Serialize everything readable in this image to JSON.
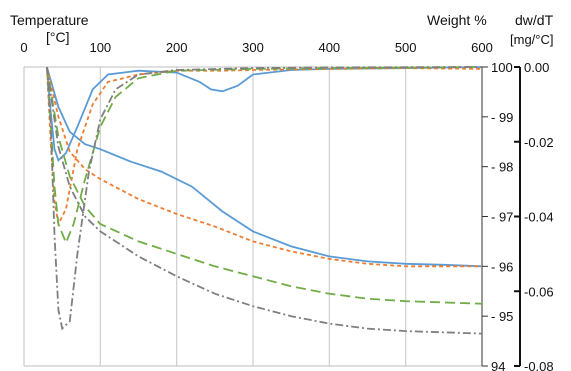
{
  "chart_data": {
    "type": "line",
    "x_axis": {
      "label": "Temperature",
      "unit": "[°C]",
      "ticks": [
        0,
        100,
        200,
        300,
        400,
        500,
        600
      ],
      "range": [
        0,
        600
      ],
      "position": "top",
      "grid": true
    },
    "y_axis_weight": {
      "label": "Weight %",
      "ticks": [
        94,
        95,
        96,
        97,
        98,
        99,
        100
      ],
      "range": [
        94,
        100
      ]
    },
    "y_axis_dwdt": {
      "label": "dw/dT",
      "unit": "[mg/°C]",
      "tick_labels": [
        "0.00",
        "-0.02",
        "-0.04",
        "-0.06",
        "-0.08"
      ],
      "ticks": [
        0,
        -0.02,
        -0.04,
        -0.06,
        -0.08
      ],
      "range": [
        -0.08,
        0
      ]
    },
    "series": [
      {
        "color": "#5b9bd5",
        "style": "solid",
        "weight": [
          [
            30,
            100
          ],
          [
            45,
            99.2
          ],
          [
            60,
            98.7
          ],
          [
            80,
            98.45
          ],
          [
            100,
            98.35
          ],
          [
            140,
            98.1
          ],
          [
            180,
            97.9
          ],
          [
            220,
            97.6
          ],
          [
            260,
            97.1
          ],
          [
            300,
            96.7
          ],
          [
            350,
            96.4
          ],
          [
            400,
            96.2
          ],
          [
            450,
            96.1
          ],
          [
            500,
            96.05
          ],
          [
            550,
            96.03
          ],
          [
            600,
            96.0
          ]
        ],
        "dwdt": [
          [
            30,
            0
          ],
          [
            35,
            -0.012
          ],
          [
            40,
            -0.022
          ],
          [
            45,
            -0.025
          ],
          [
            55,
            -0.023
          ],
          [
            70,
            -0.016
          ],
          [
            90,
            -0.006
          ],
          [
            110,
            -0.002
          ],
          [
            150,
            -0.001
          ],
          [
            200,
            -0.0015
          ],
          [
            230,
            -0.004
          ],
          [
            245,
            -0.006
          ],
          [
            260,
            -0.0065
          ],
          [
            280,
            -0.005
          ],
          [
            300,
            -0.002
          ],
          [
            350,
            -0.0008
          ],
          [
            400,
            -0.0005
          ],
          [
            500,
            -0.0003
          ],
          [
            600,
            0
          ]
        ]
      },
      {
        "color": "#ed7d31",
        "style": "dashed",
        "weight": [
          [
            30,
            100
          ],
          [
            45,
            99.0
          ],
          [
            60,
            98.3
          ],
          [
            80,
            97.95
          ],
          [
            100,
            97.75
          ],
          [
            150,
            97.35
          ],
          [
            200,
            97.05
          ],
          [
            250,
            96.8
          ],
          [
            300,
            96.5
          ],
          [
            350,
            96.3
          ],
          [
            400,
            96.15
          ],
          [
            450,
            96.05
          ],
          [
            500,
            96.0
          ],
          [
            600,
            96.0
          ]
        ],
        "dwdt": [
          [
            30,
            0
          ],
          [
            35,
            -0.02
          ],
          [
            40,
            -0.036
          ],
          [
            45,
            -0.042
          ],
          [
            55,
            -0.038
          ],
          [
            70,
            -0.022
          ],
          [
            90,
            -0.01
          ],
          [
            110,
            -0.004
          ],
          [
            150,
            -0.002
          ],
          [
            200,
            -0.001
          ],
          [
            260,
            -0.001
          ],
          [
            300,
            -0.0008
          ],
          [
            400,
            -0.0005
          ],
          [
            500,
            -0.0003
          ],
          [
            600,
            -0.0005
          ]
        ]
      },
      {
        "color": "#70ad47",
        "style": "long-dash",
        "weight": [
          [
            30,
            100
          ],
          [
            45,
            98.6
          ],
          [
            60,
            97.8
          ],
          [
            80,
            97.2
          ],
          [
            100,
            96.85
          ],
          [
            150,
            96.5
          ],
          [
            200,
            96.25
          ],
          [
            250,
            96.0
          ],
          [
            300,
            95.8
          ],
          [
            350,
            95.6
          ],
          [
            400,
            95.45
          ],
          [
            450,
            95.35
          ],
          [
            500,
            95.3
          ],
          [
            600,
            95.25
          ]
        ],
        "dwdt": [
          [
            30,
            0
          ],
          [
            35,
            -0.015
          ],
          [
            40,
            -0.032
          ],
          [
            45,
            -0.042
          ],
          [
            55,
            -0.047
          ],
          [
            65,
            -0.042
          ],
          [
            80,
            -0.03
          ],
          [
            100,
            -0.016
          ],
          [
            120,
            -0.008
          ],
          [
            150,
            -0.003
          ],
          [
            200,
            -0.001
          ],
          [
            300,
            -0.0005
          ],
          [
            400,
            -0.0003
          ],
          [
            600,
            0
          ]
        ]
      },
      {
        "color": "#7f7f7f",
        "style": "dash-dot",
        "weight": [
          [
            30,
            100
          ],
          [
            45,
            98.4
          ],
          [
            60,
            97.6
          ],
          [
            80,
            97.0
          ],
          [
            100,
            96.7
          ],
          [
            150,
            96.2
          ],
          [
            200,
            95.8
          ],
          [
            250,
            95.45
          ],
          [
            300,
            95.2
          ],
          [
            350,
            95.0
          ],
          [
            400,
            94.85
          ],
          [
            450,
            94.75
          ],
          [
            500,
            94.7
          ],
          [
            600,
            94.65
          ]
        ],
        "dwdt": [
          [
            30,
            0
          ],
          [
            35,
            -0.015
          ],
          [
            40,
            -0.045
          ],
          [
            45,
            -0.065
          ],
          [
            50,
            -0.07
          ],
          [
            60,
            -0.068
          ],
          [
            70,
            -0.05
          ],
          [
            85,
            -0.028
          ],
          [
            100,
            -0.014
          ],
          [
            120,
            -0.006
          ],
          [
            150,
            -0.002
          ],
          [
            200,
            -0.0008
          ],
          [
            300,
            -0.0003
          ],
          [
            400,
            -0.0001
          ],
          [
            600,
            0
          ]
        ]
      }
    ]
  }
}
